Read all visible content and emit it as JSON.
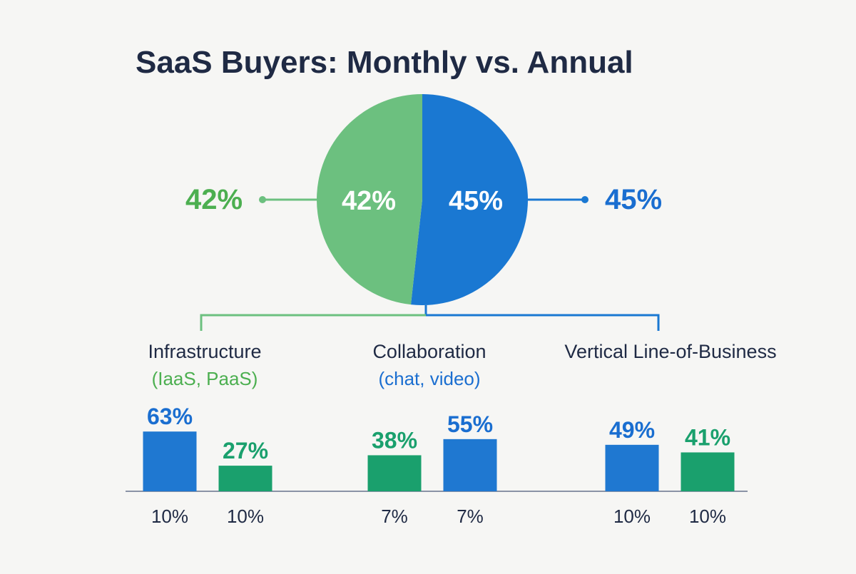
{
  "title": "SaaS Buyers: Monthly vs. Annual",
  "colors": {
    "green": "#6cc07f",
    "blue": "#1a78d2",
    "bar_blue": "#1f78d1",
    "bar_green": "#1aa06d",
    "text_dark": "#1f2a44",
    "green_text": "#4caf50",
    "blue_text": "#1a6ed0",
    "connector_green": "#6cc07f",
    "connector_blue": "#1a78d2",
    "axis": "#8a93a6"
  },
  "chart_data": [
    {
      "type": "pie",
      "slices": [
        {
          "label": "42%",
          "value": 42,
          "color": "#6cc07f"
        },
        {
          "label": "45%",
          "value": 45,
          "color": "#1a78d2"
        }
      ],
      "callouts": {
        "left": "42%",
        "right": "45%"
      }
    },
    {
      "type": "bar",
      "groups": [
        {
          "name": "Infrastructure",
          "subtitle": "(IaaS, PaaS)",
          "bars": [
            {
              "value": 63,
              "label": "63%",
              "color": "#1f78d1",
              "bottom_label": "10%"
            },
            {
              "value": 27,
              "label": "27%",
              "color": "#1aa06d",
              "bottom_label": "10%"
            }
          ]
        },
        {
          "name": "Collaboration",
          "subtitle": "(chat, video)",
          "bars": [
            {
              "value": 38,
              "label": "38%",
              "color": "#1aa06d",
              "bottom_label": "7%"
            },
            {
              "value": 55,
              "label": "55%",
              "color": "#1f78d1",
              "bottom_label": "7%"
            }
          ]
        },
        {
          "name": "Vertical Line-of-Business",
          "subtitle": "",
          "bars": [
            {
              "value": 49,
              "label": "49%",
              "color": "#1f78d1",
              "bottom_label": "10%"
            },
            {
              "value": 41,
              "label": "41%",
              "color": "#1aa06d",
              "bottom_label": "10%"
            }
          ]
        }
      ]
    }
  ]
}
